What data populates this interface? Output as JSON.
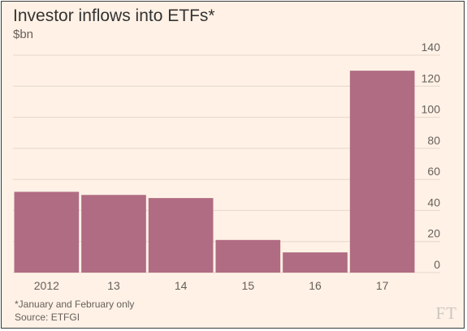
{
  "header": {
    "title": "Investor inflows into ETFs*",
    "unit": "$bn"
  },
  "footer": {
    "note": "*January and February only",
    "source": "Source: ETFGI",
    "logo": "FT"
  },
  "colors": {
    "bar": "#b06c83",
    "background": "#fff1e5",
    "grid": "#e4d8cb",
    "text": "#66605c"
  },
  "chart_data": {
    "type": "bar",
    "categories": [
      "2012",
      "13",
      "14",
      "15",
      "16",
      "17"
    ],
    "values": [
      52,
      50,
      48,
      21,
      13,
      130
    ],
    "title": "Investor inflows into ETFs*",
    "xlabel": "",
    "ylabel": "$bn",
    "ylim": [
      0,
      140
    ],
    "yticks": [
      0,
      20,
      40,
      60,
      80,
      100,
      120,
      140
    ],
    "grid": true,
    "y_axis_side": "right"
  }
}
